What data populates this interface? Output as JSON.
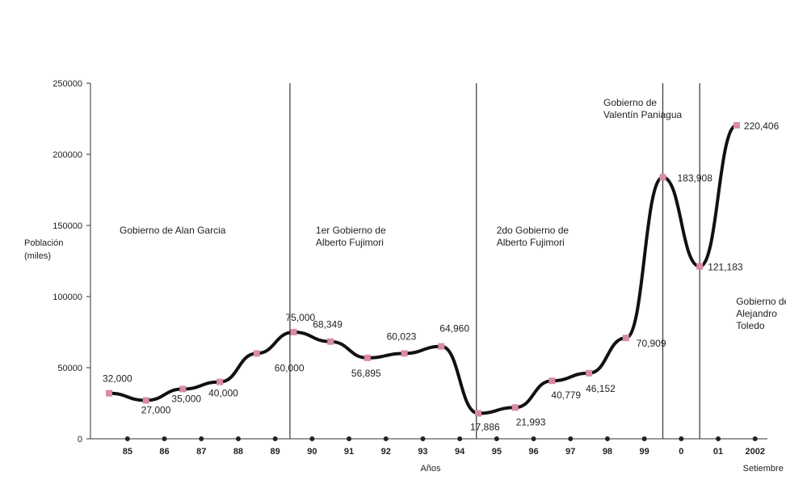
{
  "chart_data": {
    "type": "line",
    "ylabel": [
      "Población",
      "(miles)"
    ],
    "xlabel": "Años",
    "ylim": [
      0,
      250000
    ],
    "yticks": [
      "0",
      "50000",
      "100000",
      "150000",
      "200000",
      "250000"
    ],
    "grid": false,
    "accent_line": "#111111",
    "marker_color": "#d98aa8",
    "x": [
      {
        "key": "1985",
        "tick": "85"
      },
      {
        "key": "1986",
        "tick": "86"
      },
      {
        "key": "1987",
        "tick": "87"
      },
      {
        "key": "1988",
        "tick": "88"
      },
      {
        "key": "1989",
        "tick": "89"
      },
      {
        "key": "1990",
        "tick": "90"
      },
      {
        "key": "1991",
        "tick": "91"
      },
      {
        "key": "1992",
        "tick": "92"
      },
      {
        "key": "1993",
        "tick": "93"
      },
      {
        "key": "1994",
        "tick": "94"
      },
      {
        "key": "1995",
        "tick": "95"
      },
      {
        "key": "1996",
        "tick": "96"
      },
      {
        "key": "1997",
        "tick": "97"
      },
      {
        "key": "1998",
        "tick": "98"
      },
      {
        "key": "1999",
        "tick": "99"
      },
      {
        "key": "2000",
        "tick": "0"
      },
      {
        "key": "2001",
        "tick": "01"
      },
      {
        "key": "2002",
        "tick": "2002"
      }
    ],
    "x_sublabel": {
      "key": "2002",
      "text": "Setiembre"
    },
    "series": [
      {
        "values": [
          32000,
          27000,
          35000,
          40000,
          60000,
          75000,
          68349,
          56895,
          60023,
          64960,
          17886,
          21993,
          40779,
          46152,
          70909,
          183908,
          121183,
          220406
        ],
        "labels": [
          "32,000",
          "27,000",
          "35,000",
          "40,000",
          "60,000",
          "75,000",
          "68,349",
          "56,895",
          "60,023",
          "64,960",
          "17,886",
          "21,993",
          "40,779",
          "46,152",
          "70,909",
          "183,908",
          "121,183",
          "220,406"
        ]
      }
    ],
    "periods": [
      {
        "after_key": "1989",
        "fraction": 0.9
      },
      {
        "after_key": "1994",
        "fraction": 0.95
      },
      {
        "after_key": "1999",
        "fraction": 1.0
      },
      {
        "after_key": "2000",
        "fraction": 1.0
      }
    ],
    "annotations": [
      {
        "lines": [
          "Gobierno de Alan Garcia"
        ]
      },
      {
        "lines": [
          "1er Gobierno de",
          "Alberto Fujimori"
        ]
      },
      {
        "lines": [
          "2do Gobierno de",
          "Alberto Fujimori"
        ]
      },
      {
        "lines": [
          "Gobierno de",
          "Valentín Paniagua"
        ]
      },
      {
        "lines": [
          "Gobierno de",
          "Alejandro",
          "Toledo"
        ]
      }
    ]
  }
}
